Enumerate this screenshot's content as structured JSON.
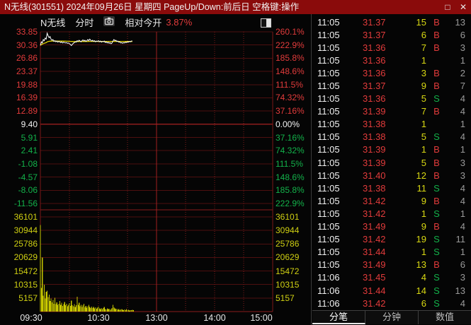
{
  "window": {
    "title": "N无线(301551) 2024年09月26日 星期四 PageUp/Down:前后日 空格键:操作",
    "maximize_glyph": "□",
    "close_glyph": "✕"
  },
  "chart": {
    "header": {
      "name": "N无线",
      "period": "分时",
      "mode_label": "相对今开",
      "change_pct": "3.87%"
    }
  },
  "chart_data": {
    "type": "line",
    "title": "N无线 分时",
    "subtitle": "相对今开 3.87%",
    "legend_position": "none",
    "grid": true,
    "base_price": 9.4,
    "price_axis_range": [
      -11.56,
      33.85
    ],
    "volume_axis_range": [
      0,
      36101
    ],
    "price_ticks": [
      {
        "t": "33.85",
        "c": "up"
      },
      {
        "t": "30.36",
        "c": "up"
      },
      {
        "t": "26.86",
        "c": "up"
      },
      {
        "t": "23.37",
        "c": "up"
      },
      {
        "t": "19.88",
        "c": "up"
      },
      {
        "t": "16.39",
        "c": "up"
      },
      {
        "t": "12.89",
        "c": "up"
      },
      {
        "t": "9.40",
        "c": "ref"
      },
      {
        "t": "5.91",
        "c": "down"
      },
      {
        "t": "2.41",
        "c": "down"
      },
      {
        "t": "-1.08",
        "c": "down"
      },
      {
        "t": "-4.57",
        "c": "down"
      },
      {
        "t": "-8.06",
        "c": "down"
      },
      {
        "t": "-11.56",
        "c": "down"
      }
    ],
    "pct_ticks": [
      {
        "t": "260.1%",
        "c": "up"
      },
      {
        "t": "222.9%",
        "c": "up"
      },
      {
        "t": "185.8%",
        "c": "up"
      },
      {
        "t": "148.6%",
        "c": "up"
      },
      {
        "t": "111.5%",
        "c": "up"
      },
      {
        "t": "74.32%",
        "c": "up"
      },
      {
        "t": "37.16%",
        "c": "up"
      },
      {
        "t": "0.00%",
        "c": "ref"
      },
      {
        "t": "37.16%",
        "c": "down"
      },
      {
        "t": "74.32%",
        "c": "down"
      },
      {
        "t": "111.5%",
        "c": "down"
      },
      {
        "t": "148.6%",
        "c": "down"
      },
      {
        "t": "185.8%",
        "c": "down"
      },
      {
        "t": "222.9%",
        "c": "down"
      }
    ],
    "volume_ticks": [
      "36101",
      "30944",
      "25786",
      "20629",
      "15472",
      "10315",
      "5157"
    ],
    "time_ticks": [
      "09:30",
      "10:30",
      "13:00",
      "14:00",
      "15:00"
    ],
    "minutes_total": 240,
    "series": [
      {
        "name": "price",
        "color": "#ffffff",
        "values": [
          30.25,
          31.2,
          30.9,
          31.8,
          31.5,
          32.2,
          31.9,
          33.5,
          32.8,
          32.3,
          32.6,
          31.9,
          31.6,
          31.8,
          31.3,
          31.5,
          31.2,
          31.4,
          31.1,
          31.3,
          31.2,
          31.0,
          31.2,
          30.9,
          31.1,
          31.0,
          30.9,
          31.0,
          30.8,
          30.9,
          30.7,
          30.5,
          30.2,
          30.5,
          30.8,
          31.0,
          31.2,
          31.1,
          31.5,
          31.3,
          31.6,
          31.4,
          31.2,
          31.5,
          31.7,
          31.4,
          31.6,
          31.3,
          31.5,
          31.8,
          31.5,
          31.9,
          31.6,
          31.4,
          31.6,
          31.3,
          31.5,
          31.2,
          31.4,
          31.3,
          31.5,
          31.2,
          31.4,
          31.1,
          31.3,
          31.2,
          31.4,
          31.0,
          31.2,
          30.9,
          31.1,
          30.8,
          31.0,
          30.7,
          30.9,
          31.4,
          31.8,
          31.5,
          31.6,
          31.3,
          31.4,
          31.1,
          31.2,
          30.9,
          31.0,
          30.8,
          31.0,
          30.9,
          31.1,
          31.0,
          31.2,
          31.1,
          31.3,
          31.2,
          31.4,
          31.42
        ]
      },
      {
        "name": "volume",
        "color": "#c8c800",
        "values": [
          33000,
          9000,
          20600,
          6000,
          10300,
          5000,
          7500,
          8000,
          5500,
          6500,
          4000,
          5000,
          3500,
          4500,
          3000,
          5200,
          2800,
          3500,
          2500,
          3000,
          4000,
          2600,
          3400,
          2200,
          2800,
          3600,
          2400,
          3000,
          2000,
          2600,
          3200,
          2100,
          4200,
          2400,
          2000,
          2800,
          1800,
          2400,
          5600,
          2600,
          3400,
          2000,
          2600,
          1800,
          2400,
          3000,
          1600,
          2200,
          1500,
          2000,
          2600,
          1700,
          1400,
          1900,
          1300,
          1700,
          1200,
          1600,
          1100,
          1500,
          1900,
          1200,
          1000,
          1400,
          900,
          1300,
          1700,
          1000,
          800,
          1200,
          900,
          1100,
          700,
          1000,
          1300,
          2600,
          1600,
          1200,
          900,
          1100,
          700,
          900,
          600,
          800,
          1000,
          700,
          500,
          800,
          600,
          900,
          500,
          700,
          400,
          600,
          500,
          700,
          600
        ]
      }
    ],
    "colors": {
      "avg_line": "#e0d000",
      "grid": "#4d0f0f",
      "grid_strong": "#8b1c1c",
      "up": "#e23b3b",
      "down": "#13b24a",
      "volume": "#c8c800"
    }
  },
  "trades": {
    "rows": [
      [
        "11:05",
        "31.37",
        "15",
        "B",
        "13"
      ],
      [
        "11:05",
        "31.37",
        "6",
        "B",
        "6"
      ],
      [
        "11:05",
        "31.36",
        "7",
        "B",
        "3"
      ],
      [
        "11:05",
        "31.36",
        "1",
        "",
        "1"
      ],
      [
        "11:05",
        "31.36",
        "3",
        "B",
        "2"
      ],
      [
        "11:05",
        "31.37",
        "9",
        "B",
        "7"
      ],
      [
        "11:05",
        "31.36",
        "5",
        "S",
        "4"
      ],
      [
        "11:05",
        "31.39",
        "7",
        "B",
        "4"
      ],
      [
        "11:05",
        "31.38",
        "1",
        "",
        "1"
      ],
      [
        "11:05",
        "31.38",
        "5",
        "S",
        "4"
      ],
      [
        "11:05",
        "31.39",
        "1",
        "B",
        "1"
      ],
      [
        "11:05",
        "31.39",
        "5",
        "B",
        "3"
      ],
      [
        "11:05",
        "31.40",
        "12",
        "B",
        "3"
      ],
      [
        "11:05",
        "31.38",
        "11",
        "S",
        "4"
      ],
      [
        "11:05",
        "31.42",
        "9",
        "B",
        "4"
      ],
      [
        "11:05",
        "31.42",
        "1",
        "S",
        "1"
      ],
      [
        "11:05",
        "31.49",
        "9",
        "B",
        "4"
      ],
      [
        "11:05",
        "31.42",
        "19",
        "S",
        "11"
      ],
      [
        "11:05",
        "31.44",
        "1",
        "S",
        "1"
      ],
      [
        "11:05",
        "31.49",
        "13",
        "B",
        "6"
      ],
      [
        "11:06",
        "31.45",
        "4",
        "S",
        "3"
      ],
      [
        "11:06",
        "31.44",
        "14",
        "S",
        "13"
      ],
      [
        "11:06",
        "31.42",
        "6",
        "S",
        "4"
      ]
    ],
    "tabs": [
      {
        "label": "分笔",
        "active": true
      },
      {
        "label": "分钟",
        "active": false
      },
      {
        "label": "数值",
        "active": false
      }
    ]
  }
}
